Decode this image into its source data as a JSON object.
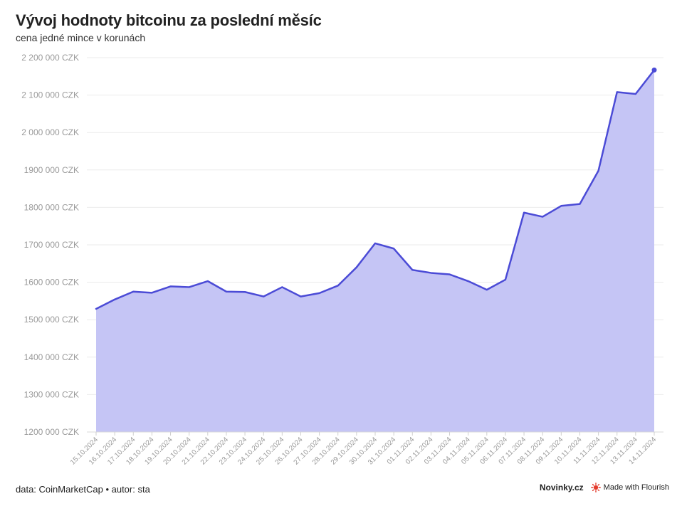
{
  "title": "Vývoj hodnoty bitcoinu za poslední měsíc",
  "subtitle": "cena jedné mince v korunách",
  "footer": {
    "source": "data: CoinMarketCap • autor: sta",
    "brand": "Novinky.cz",
    "made_with": "Made with Flourish"
  },
  "colors": {
    "line": "#4b4bd6",
    "area": "#c5c5f5",
    "grid": "#ebebeb",
    "axis_text": "#9a9a9a"
  },
  "chart_data": {
    "type": "area",
    "x": [
      "15.10.2024",
      "16.10.2024",
      "17.10.2024",
      "18.10.2024",
      "19.10.2024",
      "20.10.2024",
      "21.10.2024",
      "22.10.2024",
      "23.10.2024",
      "24.10.2024",
      "25.10.2024",
      "26.10.2024",
      "27.10.2024",
      "28.10.2024",
      "29.10.2024",
      "30.10.2024",
      "31.10.2024",
      "01.11.2024",
      "02.11.2024",
      "03.11.2024",
      "04.11.2024",
      "05.11.2024",
      "06.11.2024",
      "07.11.2024",
      "08.11.2024",
      "09.11.2024",
      "10.11.2024",
      "11.11.2024",
      "12.11.2024",
      "13.11.2024",
      "14.11.2024"
    ],
    "series": [
      {
        "values": [
          1529000,
          1554000,
          1575000,
          1572000,
          1589000,
          1587000,
          1603000,
          1575000,
          1574000,
          1562000,
          1587000,
          1562000,
          1571000,
          1591000,
          1640000,
          1704000,
          1690000,
          1633000,
          1625000,
          1621000,
          1603000,
          1580000,
          1607000,
          1786000,
          1775000,
          1804000,
          1809000,
          1898000,
          2108000,
          2103000,
          2167000
        ]
      }
    ],
    "y_ticks": [
      {
        "value": 2200000,
        "label": "2 200 000 CZK"
      },
      {
        "value": 2100000,
        "label": "2 100 000 CZK"
      },
      {
        "value": 2000000,
        "label": "2 000 000 CZK"
      },
      {
        "value": 1900000,
        "label": "1900 000 CZK"
      },
      {
        "value": 1800000,
        "label": "1800 000 CZK"
      },
      {
        "value": 1700000,
        "label": "1700 000 CZK"
      },
      {
        "value": 1600000,
        "label": "1600 000 CZK"
      },
      {
        "value": 1500000,
        "label": "1500 000 CZK"
      },
      {
        "value": 1400000,
        "label": "1400 000 CZK"
      },
      {
        "value": 1300000,
        "label": "1300 000 CZK"
      },
      {
        "value": 1200000,
        "label": "1200 000 CZK"
      }
    ],
    "ylim": [
      1200000,
      2200000
    ],
    "grid": true,
    "legend": false,
    "last_point_marker": true
  }
}
